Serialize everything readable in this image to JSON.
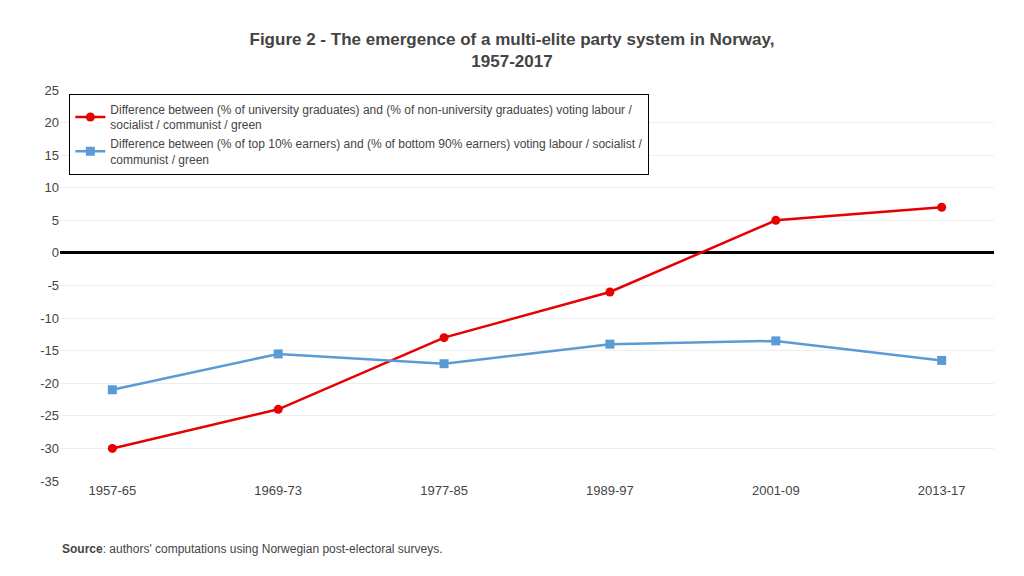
{
  "chart_data": {
    "type": "line",
    "title": "Figure 2 - The emergence of a multi-elite party system in Norway,\n1957-2017",
    "categories": [
      "1957-65",
      "1969-73",
      "1977-85",
      "1989-97",
      "2001-09",
      "2013-17"
    ],
    "series": [
      {
        "name": "Difference between (% of university graduates) and (% of non-university graduates) voting labour /\nsocialist / communist / green",
        "color": "#e60000",
        "marker": "circle",
        "values": [
          -30,
          -24,
          -13,
          -6,
          5,
          7
        ]
      },
      {
        "name": "Difference between (% of top 10% earners) and (% of bottom 90% earners) voting labour / socialist /\ncommunist / green",
        "color": "#5b9bd5",
        "marker": "square",
        "values": [
          -21,
          -15.5,
          -17,
          -14,
          -13.5,
          -16.5
        ]
      }
    ],
    "ylim": [
      -35,
      25
    ],
    "yticks": [
      -35,
      -30,
      -25,
      -20,
      -15,
      -10,
      -5,
      0,
      5,
      10,
      15,
      20,
      25
    ],
    "grid": true,
    "legend": "upper left",
    "annotations": [
      "Source: authors' computations using Norwegian post-electoral surveys."
    ]
  }
}
